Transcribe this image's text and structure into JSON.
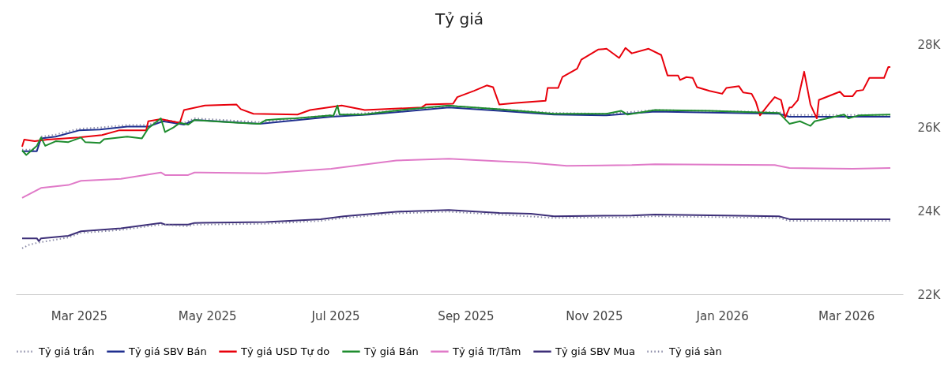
{
  "chart_data": {
    "type": "line",
    "title": "Tỷ giá",
    "xlim": [
      "2025-01-30",
      "2026-03-28"
    ],
    "xticks": [
      {
        "value": "2025-03-01",
        "label": "Mar 2025"
      },
      {
        "value": "2025-05-01",
        "label": "May 2025"
      },
      {
        "value": "2025-07-01",
        "label": "Jul 2025"
      },
      {
        "value": "2025-09-01",
        "label": "Sep 2025"
      },
      {
        "value": "2025-11-01",
        "label": "Nov 2025"
      },
      {
        "value": "2026-01-01",
        "label": "Jan 2026"
      },
      {
        "value": "2026-03-01",
        "label": "Mar 2026"
      }
    ],
    "ylim": [
      22000,
      28000
    ],
    "yticks": [
      {
        "value": 22000,
        "label": "22K"
      },
      {
        "value": 24000,
        "label": "24K"
      },
      {
        "value": 26000,
        "label": "26K"
      },
      {
        "value": 28000,
        "label": "28K"
      }
    ],
    "grid": false,
    "legend": "bottom",
    "marker": "none",
    "series": [
      {
        "name": "Tỷ giá trần",
        "color": "#8c8ca8",
        "line_style": "dotted",
        "x": [
          "2025-02-02",
          "2025-02-09",
          "2025-02-11",
          "2025-02-18",
          "2025-03-01",
          "2025-03-11",
          "2025-03-24",
          "2025-04-03",
          "2025-04-10",
          "2025-04-20",
          "2025-04-25",
          "2025-05-26",
          "2025-06-29",
          "2025-07-17",
          "2025-08-24",
          "2025-09-17",
          "2025-10-13",
          "2025-11-07",
          "2025-11-30",
          "2026-01-28",
          "2026-02-02",
          "2026-03-22"
        ],
        "values": [
          25470,
          25470,
          25780,
          25830,
          25970,
          26000,
          26060,
          26060,
          26190,
          26110,
          26220,
          26130,
          26300,
          26350,
          26520,
          26440,
          26350,
          26330,
          26420,
          26370,
          26300,
          26300
        ]
      },
      {
        "name": "Tỷ giá SBV Bán",
        "color": "#1f2f8f",
        "line_style": "solid",
        "x": [
          "2025-02-02",
          "2025-02-09",
          "2025-02-11",
          "2025-02-18",
          "2025-03-01",
          "2025-03-11",
          "2025-03-24",
          "2025-04-03",
          "2025-04-10",
          "2025-04-20",
          "2025-04-25",
          "2025-05-26",
          "2025-06-29",
          "2025-07-17",
          "2025-08-24",
          "2025-09-17",
          "2025-10-13",
          "2025-11-07",
          "2025-11-30",
          "2026-01-28",
          "2026-02-02",
          "2026-03-22"
        ],
        "values": [
          25430,
          25430,
          25740,
          25780,
          25930,
          25950,
          26020,
          26020,
          26150,
          26070,
          26180,
          26090,
          26260,
          26310,
          26480,
          26400,
          26310,
          26290,
          26380,
          26330,
          26260,
          26260
        ]
      },
      {
        "name": "Tỷ giá USD Tự do",
        "color": "#e8000b",
        "line_style": "solid",
        "x": [
          "2025-02-02",
          "2025-02-03",
          "2025-02-08",
          "2025-02-14",
          "2025-03-01",
          "2025-03-12",
          "2025-03-20",
          "2025-04-02",
          "2025-04-03",
          "2025-04-09",
          "2025-04-18",
          "2025-04-20",
          "2025-04-30",
          "2025-05-15",
          "2025-05-17",
          "2025-05-23",
          "2025-06-13",
          "2025-06-19",
          "2025-07-04",
          "2025-07-15",
          "2025-08-11",
          "2025-08-13",
          "2025-08-26",
          "2025-08-28",
          "2025-09-05",
          "2025-09-11",
          "2025-09-14",
          "2025-09-17",
          "2025-09-25",
          "2025-10-09",
          "2025-10-10",
          "2025-10-15",
          "2025-10-17",
          "2025-10-24",
          "2025-10-26",
          "2025-11-03",
          "2025-11-07",
          "2025-11-13",
          "2025-11-16",
          "2025-11-19",
          "2025-11-27",
          "2025-12-03",
          "2025-12-06",
          "2025-12-11",
          "2025-12-12",
          "2025-12-15",
          "2025-12-18",
          "2025-12-20",
          "2025-12-26",
          "2026-01-01",
          "2026-01-03",
          "2026-01-09",
          "2026-01-11",
          "2026-01-15",
          "2026-01-17",
          "2026-01-19",
          "2026-01-23",
          "2026-01-26",
          "2026-01-29",
          "2026-01-31",
          "2026-02-02",
          "2026-02-03",
          "2026-02-06",
          "2026-02-09",
          "2026-02-12",
          "2026-02-15",
          "2026-02-16",
          "2026-02-26",
          "2026-02-28",
          "2026-03-04",
          "2026-03-06",
          "2026-03-09",
          "2026-03-12",
          "2026-03-16",
          "2026-03-19",
          "2026-03-21",
          "2026-03-22"
        ],
        "values": [
          25540,
          25710,
          25670,
          25710,
          25760,
          25820,
          25930,
          25930,
          26150,
          26200,
          26110,
          26420,
          26530,
          26550,
          26440,
          26330,
          26310,
          26420,
          26530,
          26420,
          26480,
          26550,
          26570,
          26730,
          26880,
          27010,
          26970,
          26550,
          26590,
          26640,
          26950,
          26950,
          27210,
          27410,
          27630,
          27870,
          27890,
          27670,
          27910,
          27780,
          27890,
          27740,
          27250,
          27250,
          27140,
          27210,
          27190,
          26970,
          26880,
          26810,
          26950,
          26990,
          26840,
          26810,
          26620,
          26290,
          26550,
          26730,
          26660,
          26240,
          26480,
          26480,
          26660,
          27340,
          26550,
          26220,
          26660,
          26860,
          26750,
          26750,
          26880,
          26900,
          27190,
          27190,
          27190,
          27450,
          27450
        ]
      },
      {
        "name": "Tỷ giá Bán",
        "color": "#1e8c2e",
        "line_style": "solid",
        "x": [
          "2025-02-02",
          "2025-02-04",
          "2025-02-09",
          "2025-02-11",
          "2025-02-13",
          "2025-02-18",
          "2025-02-24",
          "2025-03-02",
          "2025-03-04",
          "2025-03-11",
          "2025-03-13",
          "2025-03-24",
          "2025-03-31",
          "2025-04-03",
          "2025-04-09",
          "2025-04-11",
          "2025-04-15",
          "2025-04-18",
          "2025-04-22",
          "2025-04-25",
          "2025-05-16",
          "2025-05-26",
          "2025-05-29",
          "2025-06-04",
          "2025-06-12",
          "2025-06-29",
          "2025-06-30",
          "2025-07-02",
          "2025-07-03",
          "2025-07-14",
          "2025-08-05",
          "2025-08-24",
          "2025-08-28",
          "2025-09-17",
          "2025-10-13",
          "2025-11-07",
          "2025-11-14",
          "2025-11-17",
          "2025-11-30",
          "2025-12-26",
          "2026-01-28",
          "2026-02-02",
          "2026-02-07",
          "2026-02-12",
          "2026-02-14",
          "2026-02-28",
          "2026-03-02",
          "2026-03-07",
          "2026-03-22"
        ],
        "values": [
          25450,
          25340,
          25560,
          25760,
          25560,
          25670,
          25650,
          25760,
          25650,
          25630,
          25720,
          25780,
          25740,
          25980,
          26220,
          25890,
          26000,
          26110,
          26070,
          26180,
          26110,
          26090,
          26180,
          26200,
          26220,
          26290,
          26270,
          26530,
          26310,
          26310,
          26440,
          26530,
          26510,
          26440,
          26330,
          26330,
          26400,
          26310,
          26420,
          26400,
          26350,
          26090,
          26150,
          26040,
          26150,
          26310,
          26220,
          26290,
          26310
        ]
      },
      {
        "name": "Tỷ giá Tr/Tâm",
        "color": "#e07ac8",
        "line_style": "solid",
        "x": [
          "2025-02-02",
          "2025-02-11",
          "2025-02-24",
          "2025-03-02",
          "2025-03-21",
          "2025-04-09",
          "2025-04-11",
          "2025-04-22",
          "2025-04-25",
          "2025-05-29",
          "2025-06-29",
          "2025-07-30",
          "2025-08-24",
          "2025-09-17",
          "2025-09-30",
          "2025-10-19",
          "2025-11-19",
          "2025-11-30",
          "2026-01-26",
          "2026-02-02",
          "2026-03-04",
          "2026-03-22"
        ],
        "values": [
          24310,
          24550,
          24620,
          24720,
          24770,
          24920,
          24860,
          24860,
          24920,
          24900,
          25010,
          25210,
          25250,
          25190,
          25160,
          25080,
          25100,
          25120,
          25100,
          25030,
          25010,
          25030
        ]
      },
      {
        "name": "Tỷ giá SBV Mua",
        "color": "#3d2f78",
        "line_style": "solid",
        "x": [
          "2025-02-02",
          "2025-02-09",
          "2025-02-10",
          "2025-02-11",
          "2025-02-24",
          "2025-03-02",
          "2025-03-21",
          "2025-04-09",
          "2025-04-11",
          "2025-04-22",
          "2025-04-25",
          "2025-05-29",
          "2025-06-24",
          "2025-07-05",
          "2025-07-30",
          "2025-08-24",
          "2025-09-17",
          "2025-10-02",
          "2025-10-13",
          "2025-11-19",
          "2025-11-30",
          "2026-01-28",
          "2026-02-02",
          "2026-03-04",
          "2026-03-22"
        ],
        "values": [
          23340,
          23340,
          23270,
          23340,
          23400,
          23510,
          23580,
          23710,
          23670,
          23670,
          23710,
          23730,
          23800,
          23870,
          23980,
          24020,
          23950,
          23930,
          23870,
          23890,
          23910,
          23870,
          23800,
          23800,
          23800
        ]
      },
      {
        "name": "Tỷ giá sàn",
        "color": "#8c8ca8",
        "line_style": "dotted",
        "x": [
          "2025-02-02",
          "2025-02-05",
          "2025-02-09",
          "2025-02-24",
          "2025-03-02",
          "2025-03-21",
          "2025-04-09",
          "2025-04-22",
          "2025-04-25",
          "2025-05-29",
          "2025-06-24",
          "2025-07-05",
          "2025-07-30",
          "2025-08-24",
          "2025-09-17",
          "2025-10-13",
          "2025-11-19",
          "2025-11-30",
          "2026-01-28",
          "2026-02-02",
          "2026-03-22"
        ],
        "values": [
          23100,
          23180,
          23230,
          23360,
          23470,
          23540,
          23670,
          23630,
          23670,
          23690,
          23760,
          23830,
          23940,
          23980,
          23910,
          23830,
          23850,
          23870,
          23830,
          23760,
          23760
        ]
      }
    ]
  }
}
